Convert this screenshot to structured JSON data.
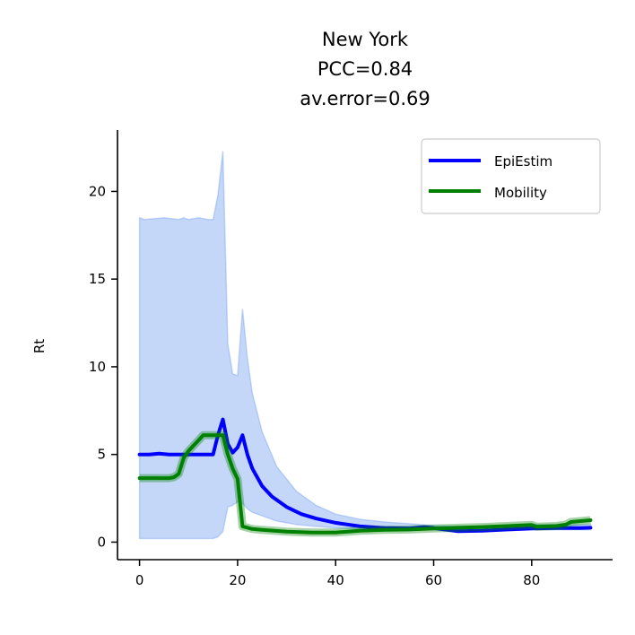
{
  "chart_data": {
    "type": "line",
    "title_lines": [
      "New York",
      "PCC=0.84",
      "av.error=0.69"
    ],
    "xlabel": "",
    "ylabel": "Rt",
    "xlim": [
      -4.5,
      96.5
    ],
    "ylim": [
      -1.0,
      23.5
    ],
    "xticks": [
      0,
      20,
      40,
      60,
      80
    ],
    "yticks": [
      0,
      5,
      10,
      15,
      20
    ],
    "grid": false,
    "legend_position": "top-right",
    "band": {
      "color": "#6495ED",
      "x": [
        0,
        1,
        5,
        8,
        9,
        10,
        12,
        14,
        15,
        16,
        17,
        18,
        19,
        20,
        21,
        22,
        23,
        25,
        28,
        32,
        36,
        40,
        45,
        50,
        55,
        60,
        65,
        70,
        75,
        80,
        85,
        90,
        92
      ],
      "lower": [
        0.2,
        0.2,
        0.2,
        0.2,
        0.2,
        0.2,
        0.2,
        0.2,
        0.2,
        0.3,
        0.6,
        2.0,
        2.1,
        2.3,
        2.2,
        1.9,
        1.7,
        1.5,
        1.2,
        1.0,
        0.9,
        0.8,
        0.75,
        0.7,
        0.7,
        0.7,
        0.6,
        0.6,
        0.65,
        0.7,
        0.7,
        0.7,
        0.7
      ],
      "upper": [
        18.5,
        18.4,
        18.5,
        18.4,
        18.5,
        18.4,
        18.5,
        18.4,
        18.4,
        19.8,
        22.3,
        11.3,
        9.6,
        9.5,
        13.3,
        10.5,
        8.5,
        6.3,
        4.3,
        2.9,
        2.1,
        1.6,
        1.3,
        1.15,
        1.05,
        0.95,
        0.9,
        0.9,
        0.95,
        1.0,
        1.0,
        1.0,
        1.0
      ]
    },
    "series": [
      {
        "name": "EpiEstim",
        "color": "#0000FF",
        "x": [
          0,
          2,
          4,
          6,
          8,
          10,
          12,
          14,
          15,
          16,
          17,
          18,
          19,
          20,
          21,
          22,
          23,
          25,
          27,
          30,
          33,
          36,
          40,
          45,
          50,
          55,
          58,
          60,
          65,
          70,
          75,
          80,
          85,
          90,
          92
        ],
        "values": [
          5.0,
          5.0,
          5.05,
          5.0,
          5.0,
          5.0,
          5.0,
          5.0,
          5.0,
          6.1,
          7.0,
          5.6,
          5.1,
          5.4,
          6.1,
          5.0,
          4.2,
          3.2,
          2.6,
          2.0,
          1.6,
          1.35,
          1.1,
          0.9,
          0.8,
          0.78,
          0.85,
          0.8,
          0.62,
          0.65,
          0.72,
          0.78,
          0.8,
          0.8,
          0.82
        ]
      },
      {
        "name": "Mobility",
        "color": "#008000",
        "x": [
          0,
          2,
          4,
          6,
          7,
          8,
          9,
          10,
          11,
          12,
          13,
          14,
          15,
          16,
          17,
          18,
          19,
          20,
          21,
          23,
          25,
          30,
          35,
          40,
          45,
          50,
          55,
          60,
          65,
          70,
          75,
          80,
          81,
          85,
          87,
          88,
          90,
          92
        ],
        "values": [
          3.65,
          3.65,
          3.65,
          3.65,
          3.7,
          3.9,
          4.8,
          5.2,
          5.5,
          5.8,
          6.1,
          6.1,
          6.1,
          6.1,
          6.1,
          5.0,
          4.2,
          3.6,
          0.9,
          0.75,
          0.7,
          0.6,
          0.55,
          0.55,
          0.65,
          0.7,
          0.72,
          0.78,
          0.82,
          0.86,
          0.92,
          0.98,
          0.88,
          0.92,
          1.0,
          1.15,
          1.2,
          1.25
        ]
      }
    ]
  }
}
